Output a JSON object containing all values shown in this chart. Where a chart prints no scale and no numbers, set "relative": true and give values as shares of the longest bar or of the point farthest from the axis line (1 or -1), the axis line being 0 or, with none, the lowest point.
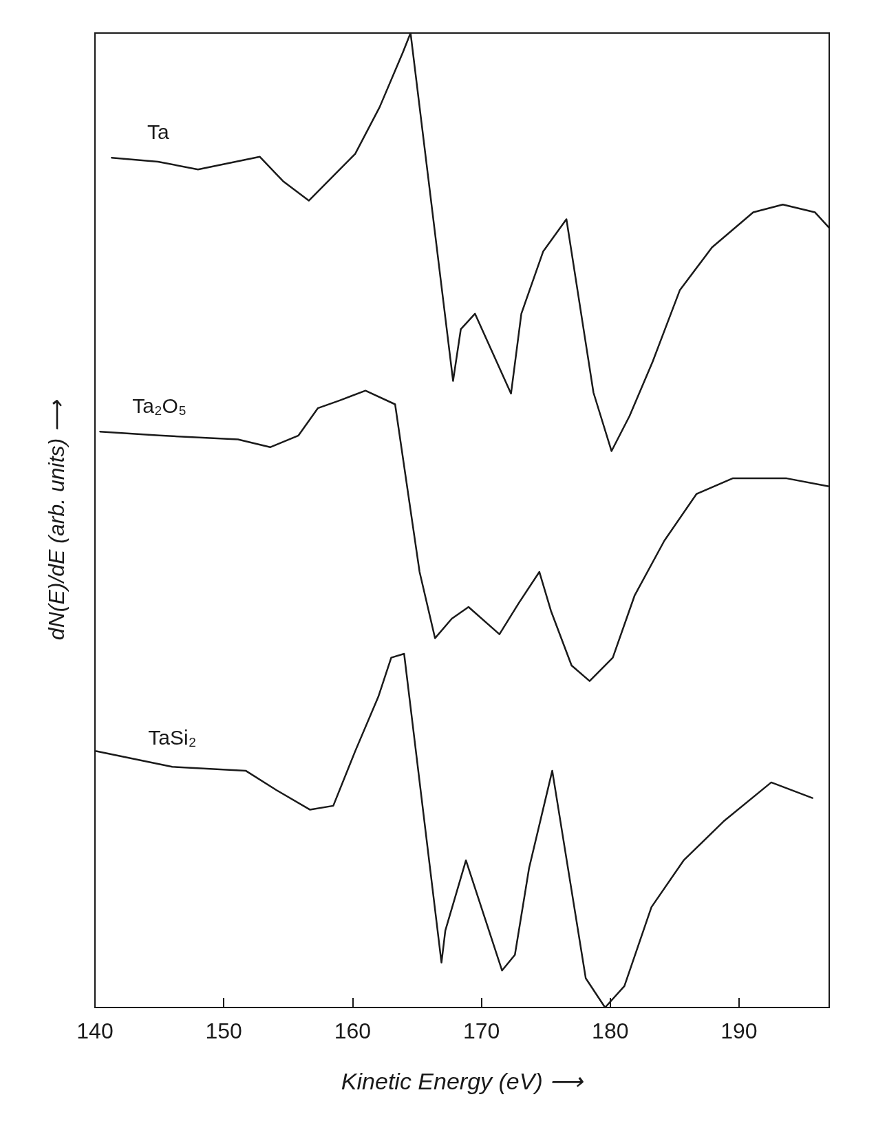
{
  "chart_data": {
    "type": "line",
    "xlabel": "Kinetic Energy (eV) ⟶",
    "ylabel": "dN(E)/dE (arb. units) ⟶",
    "relative": true,
    "xlim": [
      140,
      197
    ],
    "xticks": [
      140,
      150,
      160,
      170,
      180,
      190
    ],
    "grid": false,
    "legend": false,
    "marker": "none",
    "line_style": "solid",
    "series": [
      {
        "name": "Ta",
        "color": "#1a1a1a",
        "x": [
          141.3,
          144.9,
          148.0,
          152.8,
          154.6,
          156.6,
          160.2,
          162.1,
          163.9,
          164.5,
          167.8,
          168.4,
          169.5,
          172.3,
          173.1,
          174.8,
          176.6,
          178.7,
          180.1,
          181.5,
          183.3,
          185.4,
          187.9,
          191.1,
          193.4,
          195.9,
          197.0
        ],
        "values": [
          0.872,
          0.868,
          0.86,
          0.873,
          0.848,
          0.828,
          0.876,
          0.924,
          0.98,
          1.0,
          0.643,
          0.696,
          0.712,
          0.63,
          0.712,
          0.776,
          0.809,
          0.631,
          0.571,
          0.607,
          0.663,
          0.736,
          0.78,
          0.816,
          0.824,
          0.816,
          0.8
        ]
      },
      {
        "name": "Ta₂O₅",
        "color": "#1a1a1a",
        "x": [
          140.4,
          145.0,
          151.1,
          153.6,
          155.8,
          157.3,
          159.0,
          161.0,
          163.3,
          165.2,
          166.4,
          167.7,
          169.0,
          171.4,
          172.9,
          174.5,
          175.4,
          177.0,
          178.4,
          180.2,
          181.9,
          184.2,
          186.7,
          189.5,
          193.7,
          196.9
        ],
        "values": [
          0.591,
          0.587,
          0.583,
          0.575,
          0.587,
          0.615,
          0.623,
          0.633,
          0.619,
          0.447,
          0.379,
          0.399,
          0.411,
          0.383,
          0.415,
          0.447,
          0.407,
          0.351,
          0.335,
          0.359,
          0.423,
          0.479,
          0.527,
          0.543,
          0.543,
          0.535
        ]
      },
      {
        "name": "TaSi₂",
        "color": "#1a1a1a",
        "x": [
          140.1,
          146.0,
          151.7,
          154.1,
          156.7,
          158.5,
          160.2,
          162.0,
          163.0,
          164.0,
          166.9,
          167.2,
          168.8,
          171.6,
          172.6,
          173.7,
          175.5,
          178.1,
          179.6,
          181.1,
          183.2,
          185.7,
          188.8,
          192.5,
          195.7
        ],
        "values": [
          0.263,
          0.247,
          0.243,
          0.223,
          0.203,
          0.207,
          0.263,
          0.319,
          0.359,
          0.363,
          0.046,
          0.079,
          0.151,
          0.038,
          0.054,
          0.143,
          0.243,
          0.03,
          0.0,
          0.022,
          0.103,
          0.151,
          0.191,
          0.231,
          0.215
        ]
      }
    ]
  }
}
